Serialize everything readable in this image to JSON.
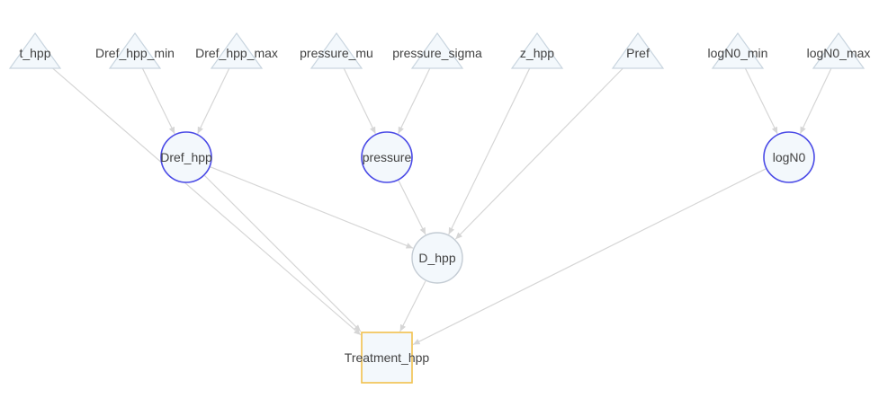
{
  "diagram": {
    "type": "directed-graph",
    "colors": {
      "edge": "#d6d6d6",
      "triangle_fill": "#f3f8fc",
      "triangle_stroke": "#c9d5df",
      "circle_blue_fill": "#f3f8fc",
      "circle_blue_stroke": "#4a4ae6",
      "circle_gray_stroke": "#c4ccd4",
      "square_fill": "#f3f8fc",
      "square_stroke": "#f2c14e",
      "label": "#424242"
    },
    "nodes": [
      {
        "id": "t_hpp",
        "label": "t_hpp",
        "shape": "triangle"
      },
      {
        "id": "Dref_hpp_min",
        "label": "Dref_hpp_min",
        "shape": "triangle"
      },
      {
        "id": "Dref_hpp_max",
        "label": "Dref_hpp_max",
        "shape": "triangle"
      },
      {
        "id": "pressure_mu",
        "label": "pressure_mu",
        "shape": "triangle"
      },
      {
        "id": "pressure_sigma",
        "label": "pressure_sigma",
        "shape": "triangle"
      },
      {
        "id": "z_hpp",
        "label": "z_hpp",
        "shape": "triangle"
      },
      {
        "id": "Pref",
        "label": "Pref",
        "shape": "triangle"
      },
      {
        "id": "logN0_min",
        "label": "logN0_min",
        "shape": "triangle"
      },
      {
        "id": "logN0_max",
        "label": "logN0_max",
        "shape": "triangle"
      },
      {
        "id": "Dref_hpp",
        "label": "Dref_hpp",
        "shape": "circle-blue"
      },
      {
        "id": "pressure",
        "label": "pressure",
        "shape": "circle-blue"
      },
      {
        "id": "logN0",
        "label": "logN0",
        "shape": "circle-blue"
      },
      {
        "id": "D_hpp",
        "label": "D_hpp",
        "shape": "circle-gray"
      },
      {
        "id": "Treatment_hpp",
        "label": "Treatment_hpp",
        "shape": "square"
      }
    ],
    "edges": [
      {
        "from": "Dref_hpp_min",
        "to": "Dref_hpp"
      },
      {
        "from": "Dref_hpp_max",
        "to": "Dref_hpp"
      },
      {
        "from": "pressure_mu",
        "to": "pressure"
      },
      {
        "from": "pressure_sigma",
        "to": "pressure"
      },
      {
        "from": "logN0_min",
        "to": "logN0"
      },
      {
        "from": "logN0_max",
        "to": "logN0"
      },
      {
        "from": "Dref_hpp",
        "to": "D_hpp"
      },
      {
        "from": "pressure",
        "to": "D_hpp"
      },
      {
        "from": "z_hpp",
        "to": "D_hpp"
      },
      {
        "from": "Pref",
        "to": "D_hpp"
      },
      {
        "from": "t_hpp",
        "to": "Treatment_hpp"
      },
      {
        "from": "Dref_hpp",
        "to": "Treatment_hpp"
      },
      {
        "from": "D_hpp",
        "to": "Treatment_hpp"
      },
      {
        "from": "logN0",
        "to": "Treatment_hpp"
      }
    ]
  }
}
